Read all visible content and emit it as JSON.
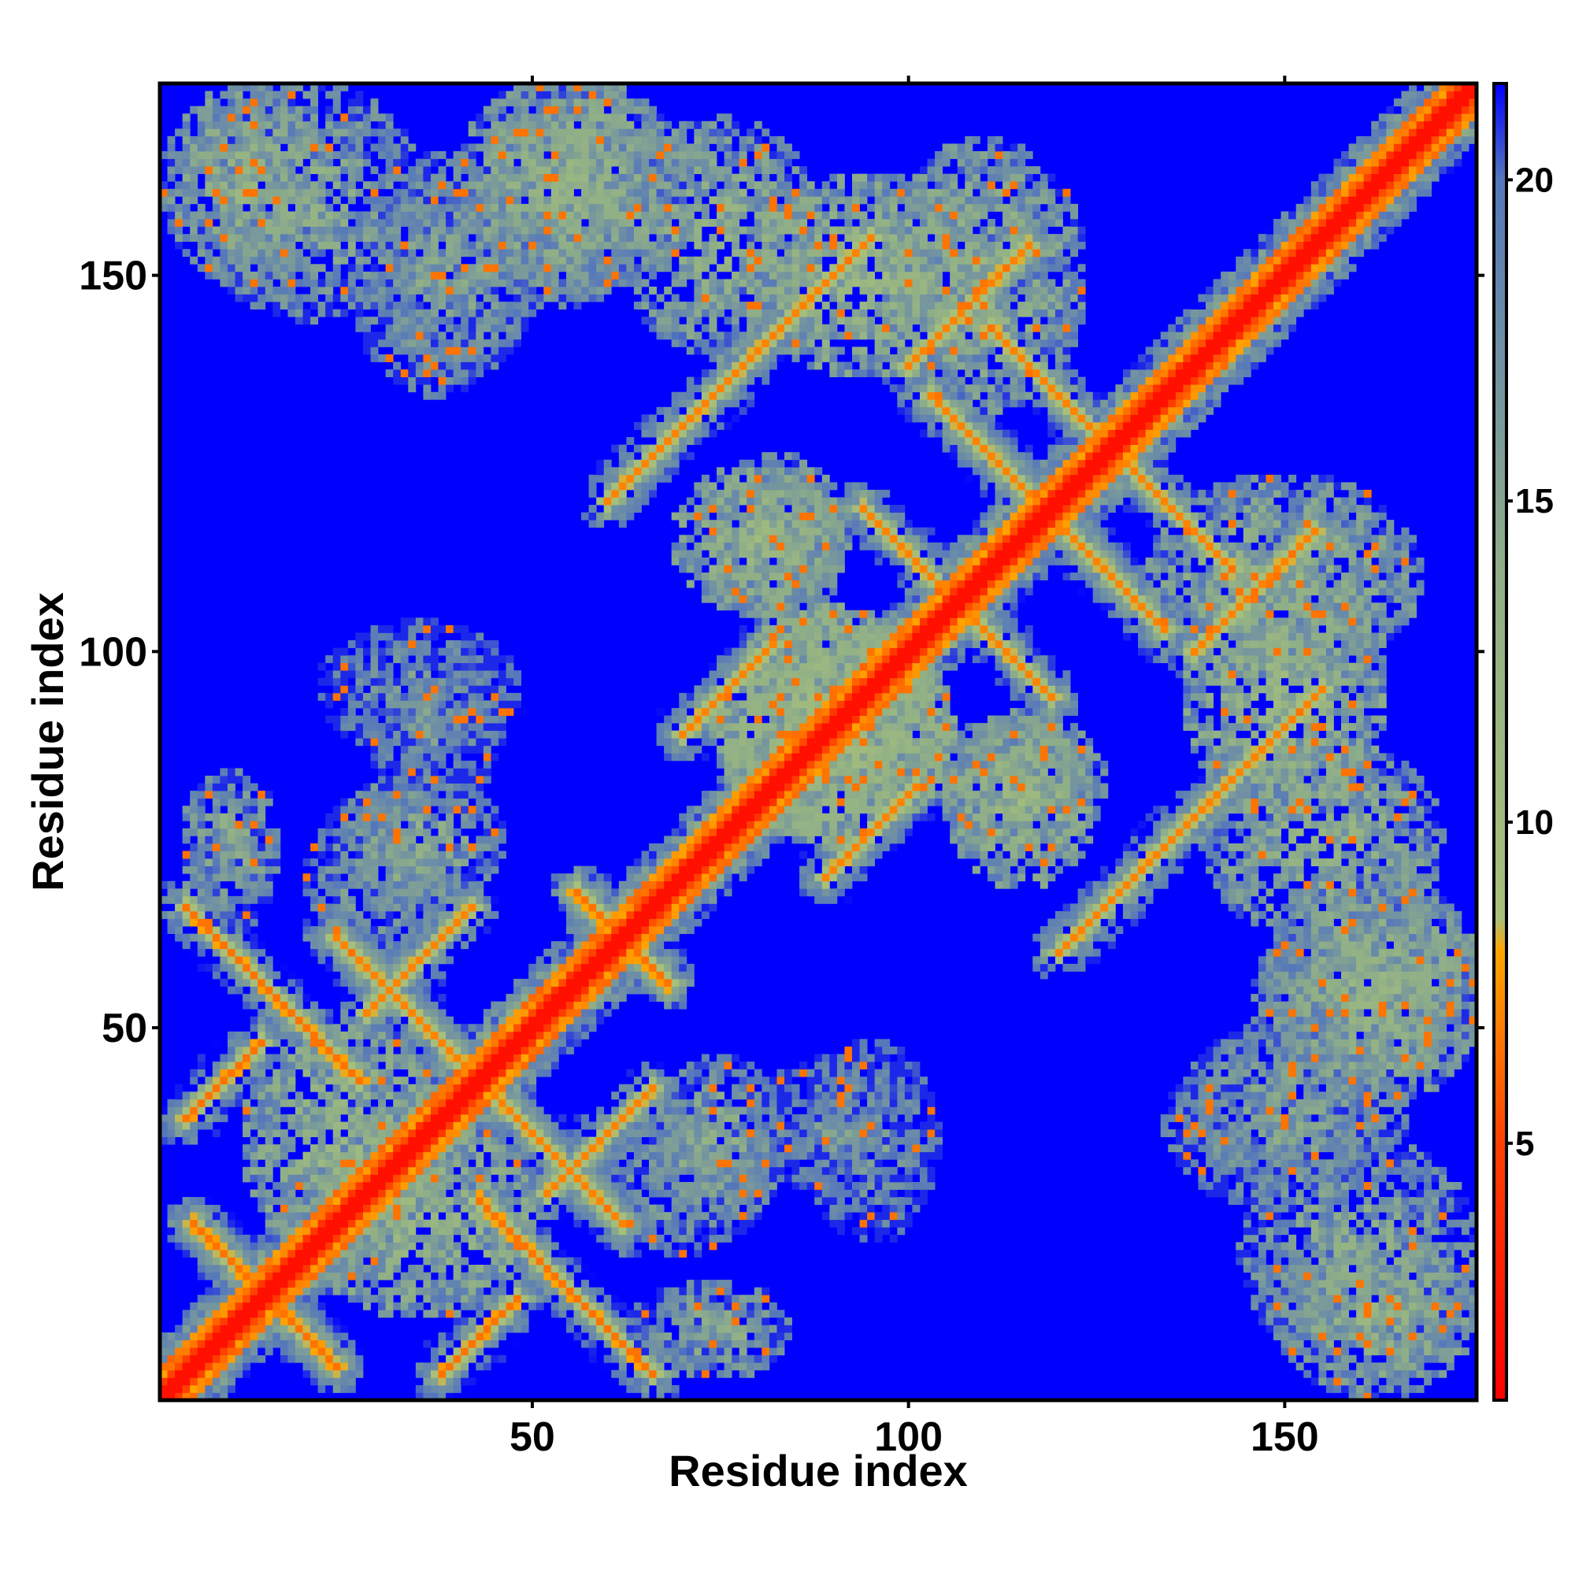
{
  "chart_data": {
    "type": "heatmap",
    "title": "",
    "xlabel": "Residue index",
    "ylabel": "Residue index",
    "xlim": [
      1,
      175
    ],
    "ylim": [
      1,
      175
    ],
    "n_residues": 175,
    "x_ticks": [
      50,
      100,
      150
    ],
    "y_ticks": [
      50,
      100,
      150
    ],
    "colorbar": {
      "ticks": [
        5,
        10,
        15,
        20
      ],
      "range": [
        1,
        21.5
      ],
      "stops": [
        {
          "value": 1,
          "color": "#ff0000"
        },
        {
          "value": 5,
          "color": "#ff4000"
        },
        {
          "value": 8,
          "color": "#ffa500"
        },
        {
          "value": 8.5,
          "color": "#a8c07a"
        },
        {
          "value": 14,
          "color": "#8fae88"
        },
        {
          "value": 20,
          "color": "#5577bb"
        },
        {
          "value": 21.5,
          "color": "#0000ff"
        }
      ]
    },
    "background_value": 21.5,
    "diagonal": {
      "band_halfwidth": 2,
      "value_on": 2,
      "value_near": 6
    },
    "contact_bands": [
      {
        "type": "anti",
        "sum": 29,
        "from": 5,
        "to": 24,
        "value": 6.5,
        "halo": 3
      },
      {
        "type": "anti",
        "sum": 70,
        "from": 4,
        "to": 27,
        "value": 6.5,
        "halo": 3
      },
      {
        "type": "anti",
        "sum": 86,
        "from": 24,
        "to": 62,
        "value": 7,
        "halo": 4
      },
      {
        "type": "anti",
        "sum": 124,
        "from": 56,
        "to": 68,
        "value": 6.5,
        "halo": 3
      },
      {
        "type": "anti",
        "sum": 237,
        "from": 103,
        "to": 134,
        "value": 7,
        "halo": 4
      },
      {
        "type": "anti",
        "sum": 213,
        "from": 106,
        "to": 119,
        "value": 7,
        "halo": 3
      },
      {
        "type": "anti",
        "sum": 254,
        "from": 126,
        "to": 143,
        "value": 7,
        "halo": 3
      },
      {
        "type": "par",
        "diff": -34,
        "from": 4,
        "to": 14,
        "value": 6.5,
        "halo": 3
      },
      {
        "type": "par",
        "diff": -19,
        "from": 70,
        "to": 82,
        "value": 7,
        "halo": 3
      },
      {
        "type": "par",
        "diff": -24,
        "from": 28,
        "to": 42,
        "value": 7,
        "halo": 3
      },
      {
        "type": "par",
        "diff": -38,
        "from": 100,
        "to": 116,
        "value": 7,
        "halo": 3
      },
      {
        "type": "par",
        "diff": -60,
        "from": 60,
        "to": 95,
        "value": 7,
        "halo": 3
      }
    ],
    "contact_blobs": [
      {
        "cx": 12,
        "cy": 162,
        "rx": 10,
        "ry": 12,
        "value": 13
      },
      {
        "cx": 55,
        "cy": 162,
        "rx": 14,
        "ry": 13,
        "value": 13
      },
      {
        "cx": 40,
        "cy": 150,
        "rx": 10,
        "ry": 12,
        "value": 15
      },
      {
        "cx": 95,
        "cy": 150,
        "rx": 15,
        "ry": 12,
        "value": 12
      },
      {
        "cx": 83,
        "cy": 115,
        "rx": 8,
        "ry": 10,
        "value": 13
      },
      {
        "cx": 90,
        "cy": 90,
        "rx": 14,
        "ry": 14,
        "value": 11
      },
      {
        "cx": 115,
        "cy": 80,
        "rx": 9,
        "ry": 10,
        "value": 12
      },
      {
        "cx": 150,
        "cy": 110,
        "rx": 16,
        "ry": 12,
        "value": 13
      },
      {
        "cx": 155,
        "cy": 75,
        "rx": 14,
        "ry": 12,
        "value": 13
      },
      {
        "cx": 162,
        "cy": 55,
        "rx": 14,
        "ry": 10,
        "value": 13
      },
      {
        "cx": 160,
        "cy": 20,
        "rx": 14,
        "ry": 14,
        "value": 14
      },
      {
        "cx": 35,
        "cy": 25,
        "rx": 14,
        "ry": 12,
        "value": 12
      },
      {
        "cx": 70,
        "cy": 30,
        "rx": 10,
        "ry": 9,
        "value": 15
      },
      {
        "cx": 10,
        "cy": 75,
        "rx": 6,
        "ry": 8,
        "value": 14
      },
      {
        "cx": 35,
        "cy": 75,
        "rx": 10,
        "ry": 8,
        "value": 14
      },
      {
        "cx": 35,
        "cy": 95,
        "rx": 12,
        "ry": 8,
        "value": 16
      },
      {
        "cx": 90,
        "cy": 37,
        "rx": 10,
        "ry": 8,
        "value": 16
      },
      {
        "cx": 150,
        "cy": 37,
        "rx": 14,
        "ry": 10,
        "value": 15
      },
      {
        "cx": 70,
        "cy": 10,
        "rx": 7,
        "ry": 5,
        "value": 16
      }
    ]
  }
}
